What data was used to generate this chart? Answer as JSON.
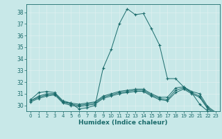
{
  "xlabel": "Humidex (Indice chaleur)",
  "background_color": "#c8e8e8",
  "grid_color": "#e0f0f0",
  "line_color": "#1a6b6b",
  "xlim": [
    -0.5,
    23.5
  ],
  "ylim": [
    29.5,
    38.7
  ],
  "yticks": [
    30,
    31,
    32,
    33,
    34,
    35,
    36,
    37,
    38
  ],
  "xticks": [
    0,
    1,
    2,
    3,
    4,
    5,
    6,
    7,
    8,
    9,
    10,
    11,
    12,
    13,
    14,
    15,
    16,
    17,
    18,
    19,
    20,
    21,
    22,
    23
  ],
  "curves": [
    {
      "x": [
        0,
        1,
        2,
        3,
        4,
        5,
        6,
        7,
        8,
        9,
        10,
        11,
        12,
        13,
        14,
        15,
        16,
        17,
        18,
        19,
        20,
        21,
        22,
        23
      ],
      "y": [
        30.5,
        31.1,
        31.2,
        31.1,
        30.4,
        30.2,
        29.7,
        29.8,
        30.0,
        33.2,
        34.8,
        37.0,
        38.3,
        37.8,
        37.9,
        36.6,
        35.2,
        32.3,
        32.3,
        31.6,
        31.1,
        30.1,
        29.5,
        29.4
      ],
      "marker": "+"
    },
    {
      "x": [
        0,
        1,
        2,
        3,
        4,
        5,
        6,
        7,
        8,
        9,
        10,
        11,
        12,
        13,
        14,
        15,
        16,
        17,
        18,
        19,
        20,
        21,
        22,
        23
      ],
      "y": [
        30.4,
        30.8,
        31.0,
        31.0,
        30.3,
        30.2,
        30.1,
        30.2,
        30.3,
        30.8,
        31.0,
        31.2,
        31.3,
        31.4,
        31.4,
        31.0,
        30.7,
        30.7,
        31.5,
        31.6,
        31.2,
        31.0,
        29.9,
        29.4
      ],
      "marker": "+"
    },
    {
      "x": [
        0,
        1,
        2,
        3,
        4,
        5,
        6,
        7,
        8,
        9,
        10,
        11,
        12,
        13,
        14,
        15,
        16,
        17,
        18,
        19,
        20,
        21,
        22,
        23
      ],
      "y": [
        30.4,
        30.7,
        30.9,
        31.0,
        30.3,
        30.1,
        30.0,
        30.1,
        30.2,
        30.7,
        30.9,
        31.1,
        31.2,
        31.3,
        31.3,
        30.9,
        30.6,
        30.5,
        31.3,
        31.5,
        31.1,
        30.8,
        29.8,
        29.3
      ],
      "marker": "+"
    },
    {
      "x": [
        0,
        1,
        2,
        3,
        4,
        5,
        6,
        7,
        8,
        9,
        10,
        11,
        12,
        13,
        14,
        15,
        16,
        17,
        18,
        19,
        20,
        21,
        22,
        23
      ],
      "y": [
        30.3,
        30.6,
        30.8,
        30.9,
        30.2,
        30.0,
        29.9,
        30.0,
        30.1,
        30.6,
        30.8,
        31.0,
        31.1,
        31.2,
        31.2,
        30.8,
        30.5,
        30.4,
        31.1,
        31.4,
        31.0,
        30.7,
        29.7,
        29.2
      ],
      "marker": "+"
    }
  ]
}
